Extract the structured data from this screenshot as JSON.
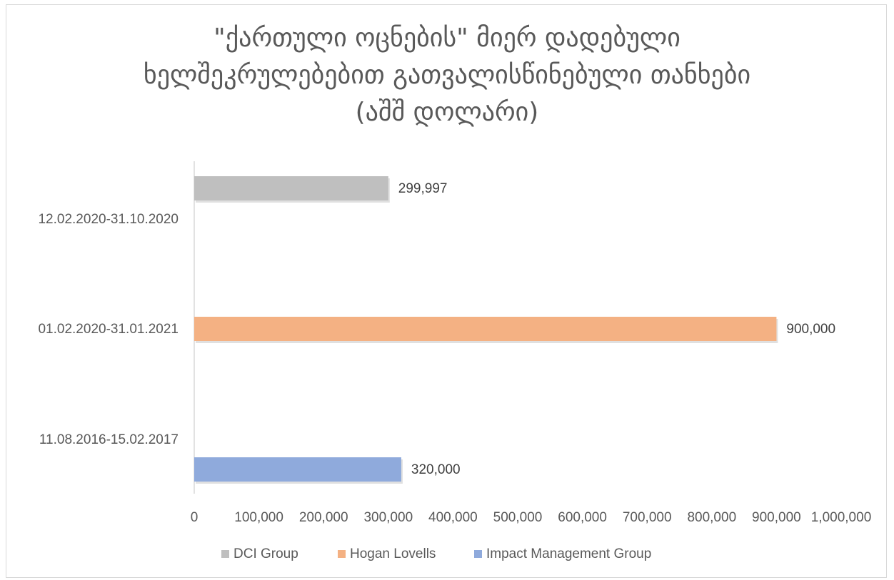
{
  "chart_data": {
    "type": "bar",
    "orientation": "horizontal",
    "title_lines": [
      "\"ქართული ოცნების\" მიერ დადებული",
      "ხელშეკრულებებით გათვალისწინებული თანხები",
      "(აშშ დოლარი)"
    ],
    "categories": [
      "12.02.2020-31.10.2020",
      "01.02.2020-31.01.2021",
      "11.08.2016-15.02.2017"
    ],
    "series": [
      {
        "name": "DCI Group",
        "color": "#bfbfbf",
        "values": [
          299997,
          null,
          null
        ]
      },
      {
        "name": "Hogan Lovells",
        "color": "#f4b183",
        "values": [
          null,
          900000,
          null
        ]
      },
      {
        "name": "Impact Management Group",
        "color": "#8faadc",
        "values": [
          null,
          null,
          320000
        ]
      }
    ],
    "data_labels": [
      "299,997",
      "900,000",
      "320,000"
    ],
    "xlim": [
      0,
      1000000
    ],
    "x_ticks": [
      "0",
      "100,000",
      "200,000",
      "300,000",
      "400,000",
      "500,000",
      "600,000",
      "700,000",
      "800,000",
      "900,000",
      "1,000,000"
    ],
    "grid": false,
    "legend_position": "bottom"
  }
}
